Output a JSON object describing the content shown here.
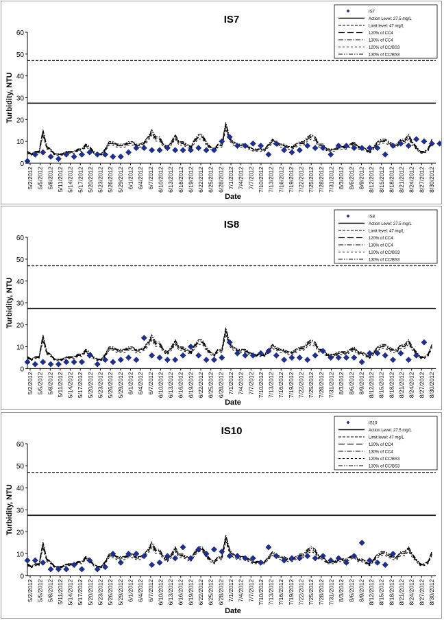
{
  "chart_data": [
    {
      "type": "scatter",
      "title": "IS7",
      "xlabel": "Date",
      "ylabel": "Turbidity, NTU",
      "ylim": [
        0,
        60
      ],
      "yticks": [
        0,
        10,
        20,
        30,
        40,
        50,
        60
      ],
      "xtick_labels": [
        "5/2/2012",
        "5/5/2012",
        "5/8/2012",
        "5/11/2012",
        "5/14/2012",
        "5/17/2012",
        "5/20/2012",
        "5/23/2012",
        "5/26/2012",
        "5/29/2012",
        "6/1/2012",
        "6/4/2012",
        "6/7/2012",
        "6/10/2012",
        "6/13/2012",
        "6/16/2012",
        "6/19/2012",
        "6/22/2012",
        "6/25/2012",
        "6/28/2012",
        "7/1/2012",
        "7/4/2012",
        "7/7/2012",
        "7/10/2012",
        "7/13/2012",
        "7/16/2012",
        "7/19/2012",
        "7/22/2012",
        "7/25/2012",
        "7/28/2012",
        "7/31/2012",
        "8/3/2012",
        "8/6/2012",
        "8/9/2012",
        "8/12/2012",
        "8/15/2012",
        "8/18/2012",
        "8/21/2012",
        "8/24/2012",
        "8/27/2012",
        "8/30/2012"
      ],
      "legend": [
        "IS7",
        "Action Level: 27.5 mg/L",
        "Limit level: 47 mg/L",
        "120% of CC4",
        "130% of CC4",
        "120% of CC/BS3",
        "130% of CC/BS3"
      ],
      "legend_position": "top-right",
      "action_level": 27.5,
      "limit_level": 47,
      "points": [
        [
          0,
          1
        ],
        [
          2,
          4
        ],
        [
          4,
          5
        ],
        [
          6,
          3
        ],
        [
          8,
          2
        ],
        [
          10,
          4
        ],
        [
          12,
          3
        ],
        [
          14,
          4
        ],
        [
          16,
          5
        ],
        [
          18,
          4
        ],
        [
          20,
          4
        ],
        [
          22,
          3
        ],
        [
          24,
          3
        ],
        [
          26,
          5
        ],
        [
          28,
          7
        ],
        [
          30,
          7
        ],
        [
          32,
          6
        ],
        [
          34,
          6
        ],
        [
          36,
          7
        ],
        [
          38,
          6
        ],
        [
          40,
          6
        ],
        [
          42,
          6
        ],
        [
          44,
          7
        ],
        [
          46,
          6
        ],
        [
          48,
          6
        ],
        [
          50,
          10
        ],
        [
          52,
          12
        ],
        [
          54,
          8
        ],
        [
          56,
          8
        ],
        [
          58,
          9
        ],
        [
          60,
          8
        ],
        [
          62,
          4
        ],
        [
          64,
          9
        ],
        [
          66,
          6
        ],
        [
          68,
          5
        ],
        [
          70,
          6
        ],
        [
          72,
          8
        ],
        [
          74,
          7
        ],
        [
          76,
          7
        ],
        [
          78,
          4
        ],
        [
          80,
          8
        ],
        [
          82,
          8
        ],
        [
          84,
          7
        ],
        [
          86,
          7
        ],
        [
          88,
          7
        ],
        [
          90,
          7
        ],
        [
          92,
          4
        ],
        [
          94,
          8
        ],
        [
          96,
          9
        ],
        [
          98,
          8
        ],
        [
          100,
          11
        ],
        [
          102,
          10
        ],
        [
          104,
          9
        ],
        [
          106,
          9
        ]
      ]
    },
    {
      "type": "scatter",
      "title": "IS8",
      "xlabel": "Date",
      "ylabel": "Turbidity, NTU",
      "ylim": [
        0,
        60
      ],
      "yticks": [
        0,
        10,
        20,
        30,
        40,
        50,
        60
      ],
      "xtick_labels": [
        "5/2/2012",
        "5/5/2012",
        "5/8/2012",
        "5/11/2012",
        "5/14/2012",
        "5/17/2012",
        "5/20/2012",
        "5/23/2012",
        "5/26/2012",
        "5/29/2012",
        "6/1/2012",
        "6/4/2012",
        "6/7/2012",
        "6/10/2012",
        "6/13/2012",
        "6/16/2012",
        "6/19/2012",
        "6/22/2012",
        "6/25/2012",
        "6/28/2012",
        "7/1/2012",
        "7/4/2012",
        "7/7/2012",
        "7/10/2012",
        "7/13/2012",
        "7/16/2012",
        "7/19/2012",
        "7/22/2012",
        "7/25/2012",
        "7/28/2012",
        "7/31/2012",
        "8/3/2012",
        "8/6/2012",
        "8/9/2012",
        "8/12/2012",
        "8/15/2012",
        "8/18/2012",
        "8/21/2012",
        "8/24/2012",
        "8/27/2012",
        "8/30/2012"
      ],
      "legend": [
        "IS8",
        "Action Level: 27.5 mg/L",
        "Limit level: 47 mg/L",
        "120% of CC4",
        "130% of CC4",
        "120% of CC/BS3",
        "130% of CC/BS3"
      ],
      "legend_position": "top-right",
      "action_level": 27.5,
      "limit_level": 47,
      "points": [
        [
          0,
          3
        ],
        [
          2,
          2
        ],
        [
          4,
          3
        ],
        [
          6,
          2
        ],
        [
          8,
          2
        ],
        [
          10,
          3
        ],
        [
          12,
          3
        ],
        [
          14,
          3
        ],
        [
          16,
          6
        ],
        [
          18,
          2
        ],
        [
          20,
          4
        ],
        [
          22,
          3
        ],
        [
          24,
          4
        ],
        [
          26,
          5
        ],
        [
          28,
          4
        ],
        [
          30,
          14
        ],
        [
          32,
          6
        ],
        [
          34,
          5
        ],
        [
          36,
          4
        ],
        [
          38,
          4
        ],
        [
          40,
          6
        ],
        [
          42,
          10
        ],
        [
          44,
          6
        ],
        [
          46,
          4
        ],
        [
          48,
          4
        ],
        [
          50,
          5
        ],
        [
          52,
          12
        ],
        [
          54,
          7
        ],
        [
          56,
          6
        ],
        [
          58,
          6
        ],
        [
          60,
          7
        ],
        [
          62,
          8
        ],
        [
          64,
          6
        ],
        [
          66,
          4
        ],
        [
          68,
          5
        ],
        [
          70,
          5
        ],
        [
          72,
          4
        ],
        [
          74,
          6
        ],
        [
          76,
          8
        ],
        [
          78,
          5
        ],
        [
          80,
          5
        ],
        [
          82,
          5
        ],
        [
          84,
          5
        ],
        [
          86,
          3
        ],
        [
          88,
          7
        ],
        [
          90,
          7
        ],
        [
          92,
          6
        ],
        [
          94,
          4
        ],
        [
          96,
          7
        ],
        [
          98,
          4
        ],
        [
          100,
          6
        ],
        [
          102,
          12
        ]
      ]
    },
    {
      "type": "scatter",
      "title": "IS10",
      "xlabel": "Date",
      "ylabel": "Turbidity, NTU",
      "ylim": [
        0,
        60
      ],
      "yticks": [
        0,
        10,
        20,
        30,
        40,
        50,
        60
      ],
      "xtick_labels": [
        "5/2/2012",
        "5/5/2012",
        "5/8/2012",
        "5/11/2012",
        "5/14/2012",
        "5/17/2012",
        "5/20/2012",
        "5/23/2012",
        "5/26/2012",
        "5/29/2012",
        "6/1/2012",
        "6/4/2012",
        "6/7/2012",
        "6/10/2012",
        "6/13/2012",
        "6/16/2012",
        "6/19/2012",
        "6/22/2012",
        "6/25/2012",
        "6/28/2012",
        "7/1/2012",
        "7/4/2012",
        "7/7/2012",
        "7/10/2012",
        "7/13/2012",
        "7/16/2012",
        "7/19/2012",
        "7/22/2012",
        "7/25/2012",
        "7/28/2012",
        "7/31/2012",
        "8/3/2012",
        "8/6/2012",
        "8/9/2012",
        "8/12/2012",
        "8/15/2012",
        "8/18/2012",
        "8/21/2012",
        "8/24/2012",
        "8/27/2012",
        "8/30/2012"
      ],
      "legend": [
        "IS10",
        "Action Level: 27.5 mg/L",
        "Limit level: 47 mg/L",
        "120% of CC4",
        "130% of CC4",
        "120% of CC/BS3",
        "130% of CC/BS3"
      ],
      "legend_position": "top-right",
      "action_level": 27.5,
      "limit_level": 47,
      "points": [
        [
          0,
          7
        ],
        [
          2,
          7
        ],
        [
          4,
          6
        ],
        [
          6,
          3
        ],
        [
          8,
          3
        ],
        [
          10,
          3
        ],
        [
          12,
          5
        ],
        [
          14,
          3
        ],
        [
          16,
          7
        ],
        [
          18,
          3
        ],
        [
          20,
          4
        ],
        [
          22,
          10
        ],
        [
          24,
          6
        ],
        [
          26,
          10
        ],
        [
          28,
          10
        ],
        [
          30,
          9
        ],
        [
          32,
          5
        ],
        [
          34,
          6
        ],
        [
          36,
          9
        ],
        [
          38,
          8
        ],
        [
          40,
          13
        ],
        [
          42,
          8
        ],
        [
          44,
          12
        ],
        [
          46,
          10
        ],
        [
          48,
          12
        ],
        [
          50,
          11
        ],
        [
          52,
          9
        ],
        [
          54,
          9
        ],
        [
          56,
          8
        ],
        [
          58,
          8
        ],
        [
          60,
          6
        ],
        [
          62,
          13
        ],
        [
          64,
          9
        ],
        [
          66,
          7
        ],
        [
          68,
          8
        ],
        [
          70,
          8
        ],
        [
          72,
          9
        ],
        [
          74,
          8
        ],
        [
          76,
          9
        ],
        [
          78,
          7
        ],
        [
          80,
          8
        ],
        [
          82,
          6
        ],
        [
          84,
          9
        ],
        [
          86,
          15
        ],
        [
          88,
          7
        ],
        [
          90,
          6
        ],
        [
          92,
          5
        ],
        [
          94,
          10
        ]
      ]
    }
  ]
}
